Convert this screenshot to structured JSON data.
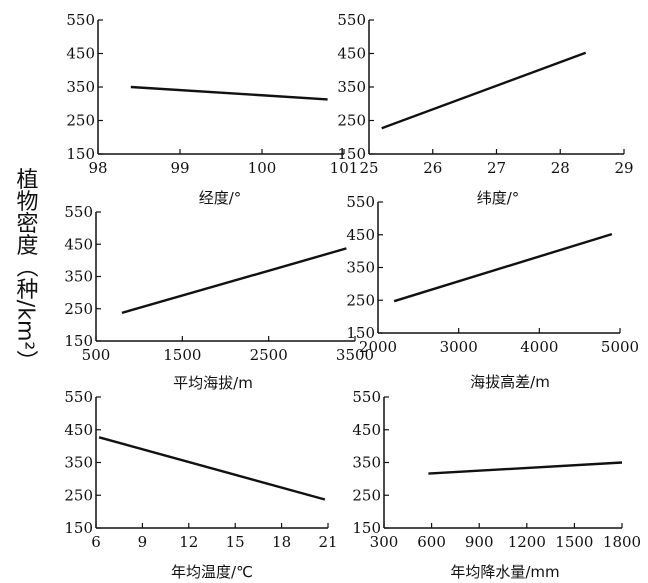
{
  "y_label": "植物密度（种/km²）",
  "chart_data": [
    {
      "type": "line",
      "xlabel": "经度/°",
      "xlim": [
        98,
        101
      ],
      "xticks": [
        98,
        99,
        100,
        101
      ],
      "ylim": [
        150,
        550
      ],
      "yticks": [
        150,
        250,
        350,
        450,
        550
      ],
      "x": [
        98.4,
        100.8
      ],
      "y": [
        350,
        313
      ]
    },
    {
      "type": "line",
      "xlabel": "纬度/°",
      "xlim": [
        25,
        29
      ],
      "xticks": [
        25,
        26,
        27,
        28,
        29
      ],
      "ylim": [
        150,
        550
      ],
      "yticks": [
        150,
        250,
        350,
        450,
        550
      ],
      "x": [
        25.2,
        28.4
      ],
      "y": [
        227,
        452
      ]
    },
    {
      "type": "line",
      "xlabel": "平均海拔/m",
      "xlim": [
        500,
        3500
      ],
      "xticks": [
        500,
        1500,
        2500,
        3500
      ],
      "ylim": [
        150,
        550
      ],
      "yticks": [
        150,
        250,
        350,
        450,
        550
      ],
      "x": [
        800,
        3400
      ],
      "y": [
        237,
        437
      ]
    },
    {
      "type": "line",
      "xlabel": "海拔高差/m",
      "xlim": [
        2000,
        5000
      ],
      "xticks": [
        2000,
        3000,
        4000,
        5000
      ],
      "ylim": [
        150,
        550
      ],
      "yticks": [
        150,
        250,
        350,
        450,
        550
      ],
      "x": [
        2200,
        4900
      ],
      "y": [
        247,
        452
      ]
    },
    {
      "type": "line",
      "xlabel": "年均温度/℃",
      "xlim": [
        6,
        21
      ],
      "xticks": [
        6,
        9,
        12,
        15,
        18,
        21
      ],
      "ylim": [
        150,
        550
      ],
      "yticks": [
        150,
        250,
        350,
        450,
        550
      ],
      "x": [
        6.2,
        20.8
      ],
      "y": [
        427,
        237
      ]
    },
    {
      "type": "line",
      "xlabel": "年均降水量/mm",
      "xlim": [
        300,
        1800
      ],
      "xticks": [
        300,
        600,
        900,
        1200,
        1500,
        1800
      ],
      "ylim": [
        150,
        550
      ],
      "yticks": [
        150,
        250,
        350,
        450,
        550
      ],
      "x": [
        580,
        1800
      ],
      "y": [
        316,
        350
      ]
    }
  ]
}
